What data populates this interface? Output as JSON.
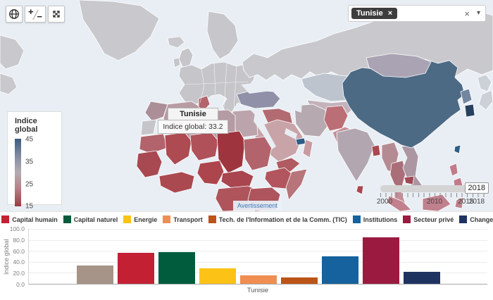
{
  "map": {
    "controls": {
      "zoom_in_label": "+",
      "zoom_out_label": "−"
    },
    "country_filter": {
      "selected_tag": "Tunisie",
      "remove_tag_icon": "×",
      "clear_icon": "×",
      "dropdown_icon": "▾"
    },
    "legend": {
      "title": "Indice global",
      "ticks": [
        "45",
        "35",
        "25",
        "15"
      ],
      "gradient": [
        "#3d5c7e",
        "#8d93a6",
        "#b3abb1",
        "#b5848b",
        "#9e3a41"
      ]
    },
    "tooltip": {
      "country": "Tunisie",
      "value_line": "Indice global: 33.2"
    },
    "warning_label": "Avertissement",
    "timeline": {
      "handle_label": "2018",
      "tick_labels": [
        "2000",
        "2010",
        "2015",
        "2018"
      ]
    },
    "ocean_color": "#e8eef4",
    "regions": {
      "greenland": "#c9c9cd",
      "north-america": "#c9c9cd",
      "iceland": "#c9c9cd",
      "uk": "#c6c6ca",
      "ireland": "#c6c6ca",
      "scandinavia": "#c7c7cb",
      "europe": "#c6c6ca",
      "russia": "#c9c9cd",
      "kazakhstan": "#bdc4ce",
      "central-asia": "#c3b2ba",
      "turkey": "#9090a8",
      "syria-iraq": "#b26b71",
      "iran": "#b6a9b0",
      "afghanistan": "#bb6e75",
      "pakistan": "#c28f96",
      "saudi-arabia": "#c8a3a7",
      "uae": "#2e5d86",
      "oman": "#c89ca1",
      "yemen": "#b05a62",
      "egypt": "#bba4ab",
      "libya": "#b59ba4",
      "algeria": "#b89ba3",
      "tunisia": "#b4646c",
      "morocco": "#ab8e97",
      "western-sahara": "#c6c6ca",
      "mauritania": "#b2636b",
      "mali": "#ad4a52",
      "niger": "#b0515a",
      "chad": "#9e353e",
      "sudan": "#b2636b",
      "ethiopia": "#b2555e",
      "somalia": "#b7747b",
      "west-africa": "#a84850",
      "ivory-ghana": "#ab4950",
      "nigeria": "#ad454d",
      "cameroon": "#a8454e",
      "congo": "#b0545c",
      "east-africa": "#ad545c",
      "india": "#b2a6b0",
      "bangladesh": "#a84850",
      "sri-lanka": "#a84850",
      "myanmar": "#b58b93",
      "thailand": "#aa6e78",
      "vietnam-laos": "#ab96a2",
      "cambodia": "#a04a55",
      "malaysia": "#c38f99",
      "china": "#4d6a85",
      "mongolia": "#a9a3b3",
      "north-korea": "#7286a0",
      "south-korea": "#27405f",
      "japan": "#ccd1d7",
      "taiwan": "#2e5d86",
      "philippines": "#c27b8a",
      "sumatra": "#c0808d",
      "borneo": "#c0808d",
      "sulawesi": "#c0808d"
    }
  },
  "chart_data": {
    "type": "bar",
    "categories": [
      "Tunisie"
    ],
    "series": [
      {
        "name": "Indice global",
        "color": "#a79488",
        "values": [
          33.2
        ]
      },
      {
        "name": "Capital humain",
        "color": "#c32033",
        "values": [
          56
        ]
      },
      {
        "name": "Capital naturel",
        "color": "#015c3e",
        "values": [
          58
        ]
      },
      {
        "name": "Energie",
        "color": "#fdc216",
        "values": [
          28
        ]
      },
      {
        "name": "Transport",
        "color": "#f08e52",
        "values": [
          16
        ]
      },
      {
        "name": "Tech. de l'Information et de la Comm. (TIC)",
        "color": "#bb5418",
        "values": [
          11
        ]
      },
      {
        "name": "Institutions",
        "color": "#15629e",
        "values": [
          50
        ]
      },
      {
        "name": "Secteur privé",
        "color": "#9b1b40",
        "values": [
          85
        ]
      },
      {
        "name": "Changements structurels",
        "color": "#1f3361",
        "values": [
          22
        ]
      }
    ],
    "title": "",
    "xlabel": "Tunisie",
    "ylabel": "Indice global",
    "ylim": [
      0,
      100
    ],
    "yticks": [
      "100.0",
      "80.0",
      "60.0",
      "40.0",
      "20.0",
      "0.0"
    ],
    "grid": true,
    "legend_position": "top"
  }
}
